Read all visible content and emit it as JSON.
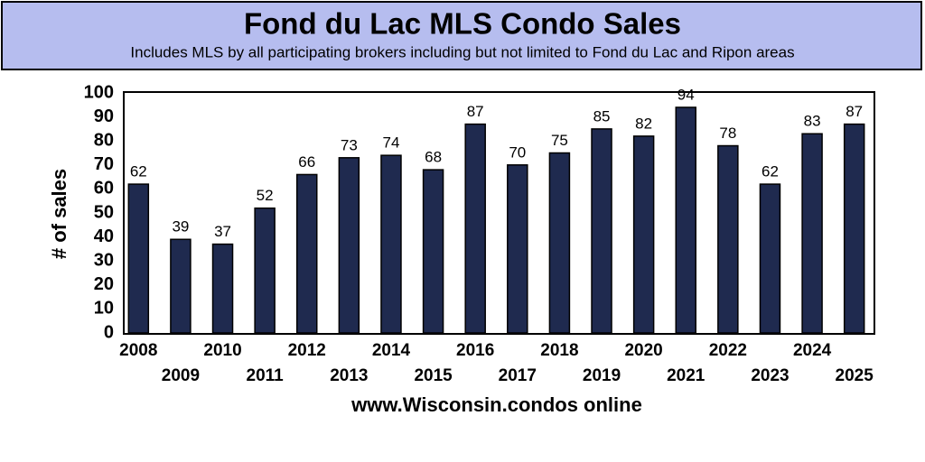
{
  "chart_data": {
    "type": "bar",
    "title": "Fond du Lac MLS Condo Sales",
    "subtitle": "Includes MLS by all participating brokers including but not limited to Fond du Lac and Ripon areas",
    "x_label": "www.Wisconsin.condos online",
    "y_label": "# of sales",
    "categories": [
      "2008",
      "2009",
      "2010",
      "2011",
      "2012",
      "2013",
      "2014",
      "2015",
      "2016",
      "2017",
      "2018",
      "2019",
      "2020",
      "2021",
      "2022",
      "2023",
      "2024",
      "2025"
    ],
    "values": [
      62,
      39,
      37,
      52,
      66,
      73,
      74,
      68,
      87,
      70,
      75,
      85,
      82,
      94,
      78,
      62,
      83,
      87
    ],
    "color": "#1f2a4f",
    "ylim": [
      0,
      100
    ],
    "yticks": [
      0,
      10,
      20,
      30,
      40,
      50,
      60,
      70,
      80,
      90,
      100
    ],
    "grid": false
  }
}
